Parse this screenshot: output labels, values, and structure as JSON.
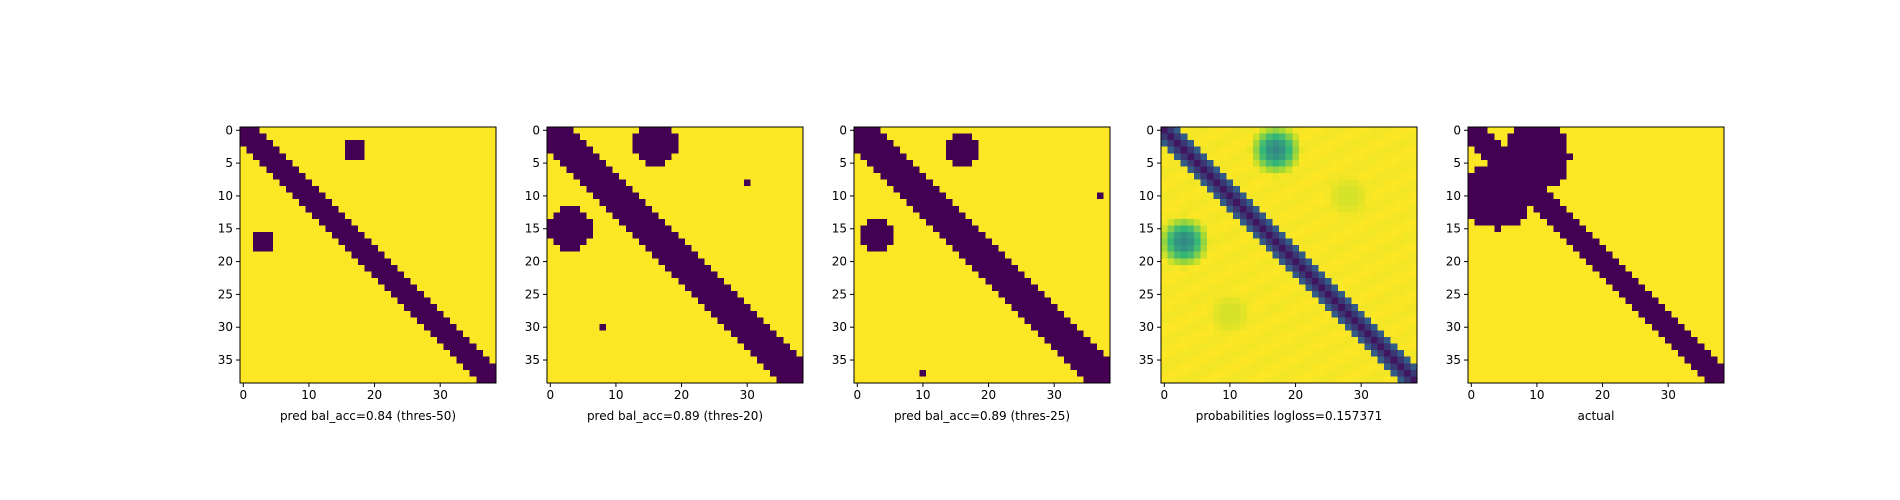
{
  "colors": {
    "background": "#ffffff",
    "low": "#440154",
    "mid_low": "#31688e",
    "mid": "#35b779",
    "mid_high": "#b5de2b",
    "high": "#fde725",
    "axis": "#000000"
  },
  "chart_data": [
    {
      "type": "heatmap",
      "title": "",
      "xlabel": "pred bal_acc=0.84 (thres-50)",
      "ylabel": "",
      "n": 39,
      "xlim": [
        0,
        38
      ],
      "ylim": [
        38,
        0
      ],
      "xticks": [
        "0",
        "10",
        "20",
        "30"
      ],
      "yticks": [
        "0",
        "5",
        "10",
        "15",
        "20",
        "25",
        "30",
        "35"
      ],
      "diag_width": 2,
      "blobs": [
        {
          "row": 3,
          "col": 17,
          "r": 1.8,
          "value": 0
        },
        {
          "row": 17,
          "col": 3,
          "r": 1.8,
          "value": 0
        }
      ],
      "fill": 1,
      "note_values": "1 = yellow (no contact), 0 = purple (contact)"
    },
    {
      "type": "heatmap",
      "title": "",
      "xlabel": "pred bal_acc=0.89 (thres-20)",
      "ylabel": "",
      "n": 39,
      "xlim": [
        0,
        38
      ],
      "ylim": [
        38,
        0
      ],
      "xticks": [
        "0",
        "10",
        "20",
        "30"
      ],
      "yticks": [
        "0",
        "5",
        "10",
        "15",
        "20",
        "25",
        "30",
        "35"
      ],
      "diag_width": 3,
      "blobs": [
        {
          "row": 2,
          "col": 16,
          "r": 3.2,
          "value": 0
        },
        {
          "row": 15,
          "col": 3,
          "r": 3.2,
          "value": 0
        },
        {
          "row": 8,
          "col": 30,
          "r": 0.6,
          "value": 0
        },
        {
          "row": 30,
          "col": 8,
          "r": 0.6,
          "value": 0
        }
      ],
      "fill": 1
    },
    {
      "type": "heatmap",
      "title": "",
      "xlabel": "pred bal_acc=0.89 (thres-25)",
      "ylabel": "",
      "n": 39,
      "xlim": [
        0,
        38
      ],
      "ylim": [
        38,
        0
      ],
      "xticks": [
        "0",
        "10",
        "20",
        "30"
      ],
      "yticks": [
        "0",
        "5",
        "10",
        "15",
        "20",
        "25",
        "30",
        "35"
      ],
      "diag_width": 3,
      "blobs": [
        {
          "row": 3,
          "col": 16,
          "r": 2.8,
          "value": 0
        },
        {
          "row": 16,
          "col": 3,
          "r": 2.8,
          "value": 0
        },
        {
          "row": 10,
          "col": 37,
          "r": 0.5,
          "value": 0
        },
        {
          "row": 37,
          "col": 10,
          "r": 0.5,
          "value": 0
        }
      ],
      "fill": 1
    },
    {
      "type": "heatmap",
      "title": "",
      "xlabel": "probabilities logloss=0.157371",
      "ylabel": "",
      "n": 39,
      "xlim": [
        0,
        38
      ],
      "ylim": [
        38,
        0
      ],
      "xticks": [
        "0",
        "10",
        "20",
        "30"
      ],
      "yticks": [
        "0",
        "5",
        "10",
        "15",
        "20",
        "25",
        "30",
        "35"
      ],
      "diag_width": 2,
      "blobs": [
        {
          "row": 3,
          "col": 17,
          "r": 4.2,
          "value": 0.35
        },
        {
          "row": 17,
          "col": 3,
          "r": 4.2,
          "value": 0.35
        },
        {
          "row": 10,
          "col": 28,
          "r": 3.5,
          "value": 0.85
        },
        {
          "row": 28,
          "col": 10,
          "r": 3.5,
          "value": 0.85
        }
      ],
      "fill": 1,
      "continuous": true
    },
    {
      "type": "heatmap",
      "title": "",
      "xlabel": "actual",
      "ylabel": "",
      "n": 39,
      "xlim": [
        0,
        38
      ],
      "ylim": [
        38,
        0
      ],
      "xticks": [
        "0",
        "10",
        "20",
        "30"
      ],
      "yticks": [
        "0",
        "5",
        "10",
        "15",
        "20",
        "25",
        "30",
        "35"
      ],
      "diag_width": 2,
      "blobs": [
        {
          "row": 4,
          "col": 10,
          "r": 5.0,
          "value": 0
        },
        {
          "row": 10,
          "col": 4,
          "r": 5.0,
          "value": 0
        }
      ],
      "fill": 1
    }
  ]
}
